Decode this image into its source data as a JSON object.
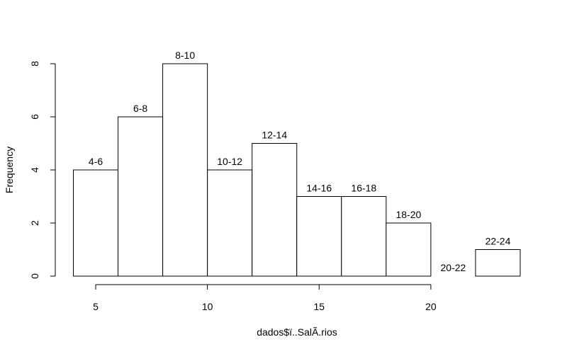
{
  "chart_data": {
    "type": "histogram",
    "x_label": "dados$ï..SalÃ.rios",
    "y_label": "Frequency",
    "bins": [
      4,
      6,
      8,
      10,
      12,
      14,
      16,
      18,
      20,
      22,
      24
    ],
    "counts": [
      4,
      6,
      8,
      4,
      5,
      3,
      3,
      2,
      0,
      1
    ],
    "bar_labels": [
      "4-6",
      "6-8",
      "8-10",
      "10-12",
      "12-14",
      "14-16",
      "16-18",
      "18-20",
      "20-22",
      "22-24"
    ],
    "color": "#ffffff",
    "edge_color": "#000000",
    "xlim": [
      4,
      24
    ],
    "xticks": [
      5,
      10,
      15,
      20
    ],
    "ylim": [
      0,
      8
    ],
    "yticks": [
      0,
      2,
      4,
      6,
      8
    ]
  }
}
